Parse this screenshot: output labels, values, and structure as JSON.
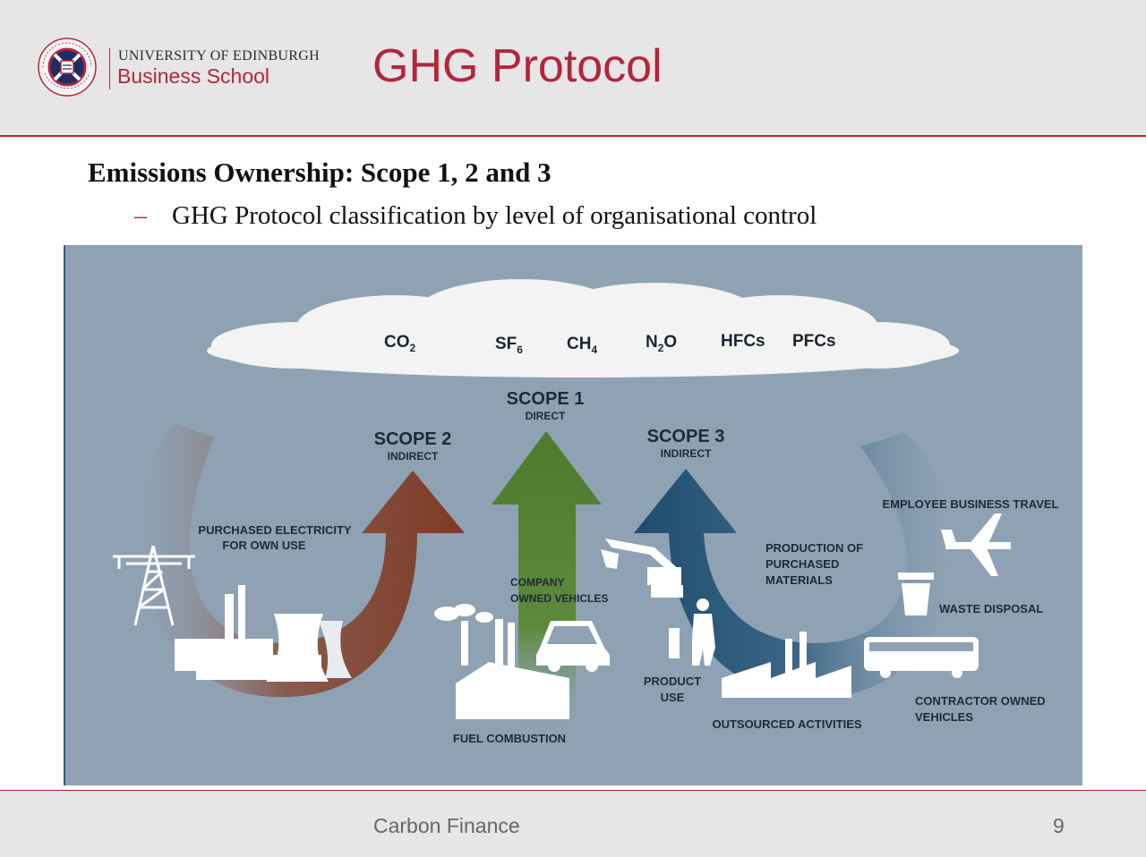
{
  "logo": {
    "university": "UNIVERSITY OF EDINBURGH",
    "school": "Business School",
    "seal_text_top": "THE UNIVERSITY",
    "seal_text_bottom": "OF EDINBURGH"
  },
  "title": "GHG Protocol",
  "heading": "Emissions Ownership: Scope 1, 2 and 3",
  "bullet": {
    "dash": "–",
    "text": "GHG Protocol classification by level of organisational control"
  },
  "diagram": {
    "gases": [
      {
        "base": "CO",
        "sub": "2",
        "tail": ""
      },
      {
        "base": "SF",
        "sub": "6",
        "tail": ""
      },
      {
        "base": "CH",
        "sub": "4",
        "tail": ""
      },
      {
        "base": "N",
        "sub": "2",
        "tail": "O"
      },
      {
        "base": "HFCs",
        "sub": "",
        "tail": ""
      },
      {
        "base": "PFCs",
        "sub": "",
        "tail": ""
      }
    ],
    "scope1": {
      "title": "SCOPE 1",
      "subtitle": "DIRECT"
    },
    "scope2": {
      "title": "SCOPE 2",
      "subtitle": "INDIRECT"
    },
    "scope3": {
      "title": "SCOPE 3",
      "subtitle": "INDIRECT"
    },
    "labels": {
      "purchased_electricity_1": "PURCHASED ELECTRICITY",
      "purchased_electricity_2": "FOR OWN USE",
      "company_vehicles_1": "COMPANY",
      "company_vehicles_2": "OWNED VEHICLES",
      "fuel_combustion": "FUEL COMBUSTION",
      "production_1": "PRODUCTION OF",
      "production_2": "PURCHASED",
      "production_3": "MATERIALS",
      "product_use_1": "PRODUCT",
      "product_use_2": "USE",
      "outsourced": "OUTSOURCED ACTIVITIES",
      "employee_travel": "EMPLOYEE BUSINESS TRAVEL",
      "waste_disposal": "WASTE DISPOSAL",
      "contractor_1": "CONTRACTOR OWNED",
      "contractor_2": "VEHICLES"
    },
    "colors": {
      "background": "#8fa2b4",
      "scope1": "#4f7a2e",
      "scope2": "#7c3b26",
      "scope3": "#1f4d6e",
      "cloud": "#f4f4f4"
    }
  },
  "footer": {
    "course": "Carbon Finance",
    "page": "9"
  }
}
